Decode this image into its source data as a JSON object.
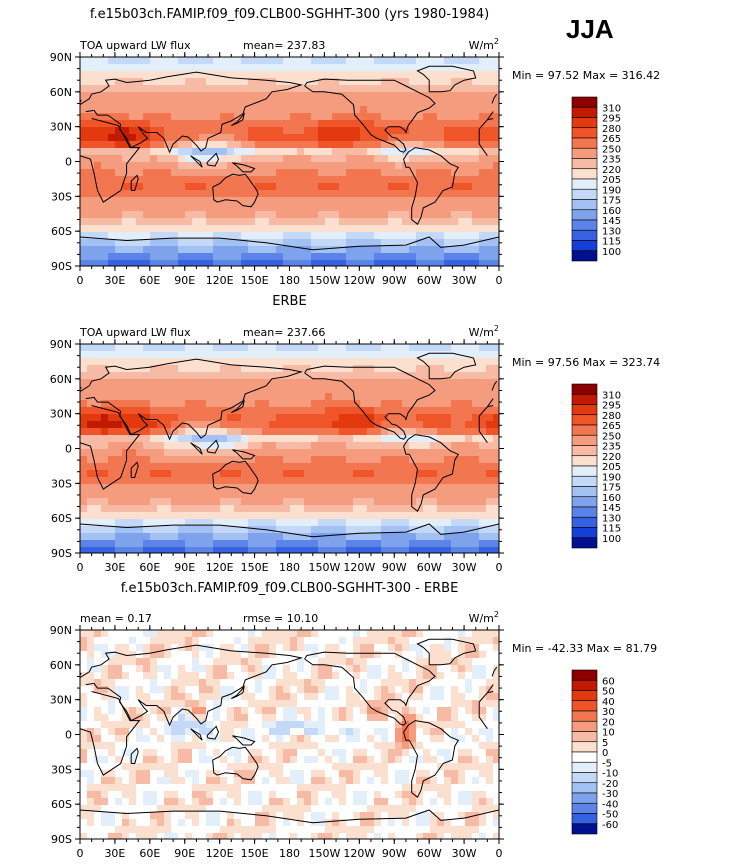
{
  "season": "JJA",
  "chart_data": [
    {
      "type": "heatmap",
      "title": "f.e15b03ch.FAMIP.f09_f09.CLB00-SGHHT-300 (yrs 1980-1984)",
      "left_label": "TOA upward LW flux",
      "center_label": "mean= 237.83",
      "units_base": "W/m",
      "units_exp": "2",
      "minmax": "Min =  97.52 Max = 316.42",
      "xticks": [
        "0",
        "30E",
        "60E",
        "90E",
        "120E",
        "150E",
        "180",
        "150W",
        "120W",
        "90W",
        "60W",
        "30W",
        "0"
      ],
      "yticks": [
        "90N",
        "60N",
        "30N",
        "0",
        "30S",
        "60S",
        "90S"
      ],
      "xlim": [
        0,
        360
      ],
      "ylim": [
        -90,
        90
      ],
      "colorbar_levels": [
        "310",
        "295",
        "280",
        "265",
        "250",
        "235",
        "220",
        "205",
        "190",
        "175",
        "160",
        "145",
        "130",
        "115",
        "100"
      ],
      "colorbar_colors": [
        "#8c0000",
        "#c21a00",
        "#e23a0e",
        "#f0552a",
        "#f27650",
        "#f59c7f",
        "#f7bba5",
        "#fbe0cf",
        "#e3eefb",
        "#c4d9f7",
        "#a3c1f2",
        "#7ea3ec",
        "#5c84e8",
        "#3662e2",
        "#1440d8",
        "#00108f"
      ]
    },
    {
      "type": "heatmap",
      "title": "ERBE",
      "left_label": "TOA upward LW flux",
      "center_label": "mean= 237.66",
      "units_base": "W/m",
      "units_exp": "2",
      "minmax": "Min =  97.56 Max = 323.74",
      "xticks": [
        "0",
        "30E",
        "60E",
        "90E",
        "120E",
        "150E",
        "180",
        "150W",
        "120W",
        "90W",
        "60W",
        "30W",
        "0"
      ],
      "yticks": [
        "90N",
        "60N",
        "30N",
        "0",
        "30S",
        "60S",
        "90S"
      ],
      "xlim": [
        0,
        360
      ],
      "ylim": [
        -90,
        90
      ],
      "colorbar_levels": [
        "310",
        "295",
        "280",
        "265",
        "250",
        "235",
        "220",
        "205",
        "190",
        "175",
        "160",
        "145",
        "130",
        "115",
        "100"
      ],
      "colorbar_colors": [
        "#8c0000",
        "#c21a00",
        "#e23a0e",
        "#f0552a",
        "#f27650",
        "#f59c7f",
        "#f7bba5",
        "#fbe0cf",
        "#e3eefb",
        "#c4d9f7",
        "#a3c1f2",
        "#7ea3ec",
        "#5c84e8",
        "#3662e2",
        "#1440d8",
        "#00108f"
      ]
    },
    {
      "type": "heatmap",
      "title": "f.e15b03ch.FAMIP.f09_f09.CLB00-SGHHT-300 - ERBE",
      "left_label": "mean =   0.17",
      "center_label": "rmse =  10.10",
      "units_base": "W/m",
      "units_exp": "2",
      "minmax": "Min = -42.33 Max =  81.79",
      "xticks": [
        "0",
        "30E",
        "60E",
        "90E",
        "120E",
        "150E",
        "180",
        "150W",
        "120W",
        "90W",
        "60W",
        "30W",
        "0"
      ],
      "yticks": [
        "90N",
        "60N",
        "30N",
        "0",
        "30S",
        "60S",
        "90S"
      ],
      "xlim": [
        0,
        360
      ],
      "ylim": [
        -90,
        90
      ],
      "colorbar_levels": [
        "60",
        "50",
        "40",
        "30",
        "20",
        "10",
        "5",
        "0",
        "-5",
        "-10",
        "-20",
        "-30",
        "-40",
        "-50",
        "-60"
      ],
      "colorbar_colors": [
        "#8c0000",
        "#c21a00",
        "#e23a0e",
        "#f0552a",
        "#f27650",
        "#f59c7f",
        "#f7bba5",
        "#fbe0cf",
        "#ffffff",
        "#e3eefb",
        "#c4d9f7",
        "#a3c1f2",
        "#7ea3ec",
        "#5c84e8",
        "#3662e2",
        "#00108f"
      ]
    }
  ]
}
